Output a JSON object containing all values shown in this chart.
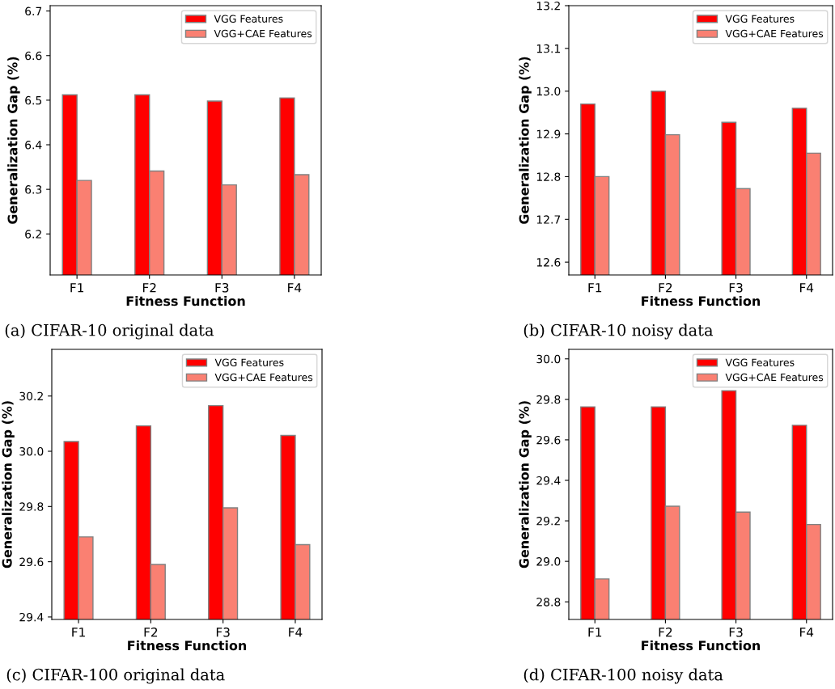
{
  "chart_data": [
    {
      "type": "bar",
      "xlabel": "Fitness Function",
      "ylabel": "Generalization Gap (%)",
      "categories": [
        "F1",
        "F2",
        "F3",
        "F4"
      ],
      "ylim": [
        6.108,
        6.712
      ],
      "yticks": [
        6.2,
        6.3,
        6.4,
        6.5,
        6.6,
        6.7
      ],
      "legend": "top right",
      "annotations": [
        "(a) CIFAR-10 original data"
      ],
      "series": [
        {
          "name": "VGG Features",
          "color": "#ff0000",
          "values": [
            6.512,
            6.512,
            6.498,
            6.505
          ]
        },
        {
          "name": "VGG+CAE Features",
          "color": "#fa8072",
          "values": [
            6.32,
            6.341,
            6.31,
            6.333
          ]
        }
      ]
    },
    {
      "type": "bar",
      "xlabel": "Fitness Function",
      "ylabel": "Generalization Gap (%)",
      "categories": [
        "F1",
        "F2",
        "F3",
        "F4"
      ],
      "ylim": [
        12.57,
        13.2
      ],
      "yticks": [
        12.6,
        12.7,
        12.8,
        12.9,
        {
          "value": 13,
          "label": "13.0"
        },
        13.1,
        13.2
      ],
      "legend": "top right",
      "annotations": [
        "(b) CIFAR-10 noisy data"
      ],
      "series": [
        {
          "name": "VGG Features",
          "color": "#ff0000",
          "values": [
            12.97,
            13.0,
            12.927,
            12.96
          ]
        },
        {
          "name": "VGG+CAE Features",
          "color": "#fa8072",
          "values": [
            12.8,
            12.898,
            12.772,
            12.855
          ]
        }
      ]
    },
    {
      "type": "bar",
      "xlabel": "Fitness Function",
      "ylabel": "Generalization Gap (%)",
      "categories": [
        "F1",
        "F2",
        "F3",
        "F4"
      ],
      "ylim": [
        29.391,
        30.369
      ],
      "yticks": [
        29.4,
        29.6,
        29.8,
        {
          "value": 30,
          "label": "30.0"
        },
        30.2
      ],
      "legend": "top right",
      "annotations": [
        "(c) CIFAR-100 original data"
      ],
      "series": [
        {
          "name": "VGG Features",
          "color": "#ff0000",
          "values": [
            30.035,
            30.092,
            30.165,
            30.057
          ]
        },
        {
          "name": "VGG+CAE Features",
          "color": "#fa8072",
          "values": [
            29.69,
            29.59,
            29.795,
            29.662
          ]
        }
      ]
    },
    {
      "type": "bar",
      "xlabel": "Fitness Function",
      "ylabel": "Generalization Gap (%)",
      "categories": [
        "F1",
        "F2",
        "F3",
        "F4"
      ],
      "ylim": [
        28.713,
        30.047
      ],
      "yticks": [
        28.8,
        {
          "value": 29,
          "label": "29.0"
        },
        29.2,
        29.4,
        29.6,
        29.8,
        {
          "value": 30,
          "label": "30.0"
        }
      ],
      "legend": "top right",
      "annotations": [
        "(d) CIFAR-100 noisy data"
      ],
      "series": [
        {
          "name": "VGG Features",
          "color": "#ff0000",
          "values": [
            29.763,
            29.763,
            29.843,
            29.672
          ]
        },
        {
          "name": "VGG+CAE Features",
          "color": "#fa8072",
          "values": [
            28.913,
            29.272,
            29.243,
            29.182
          ]
        }
      ]
    }
  ]
}
